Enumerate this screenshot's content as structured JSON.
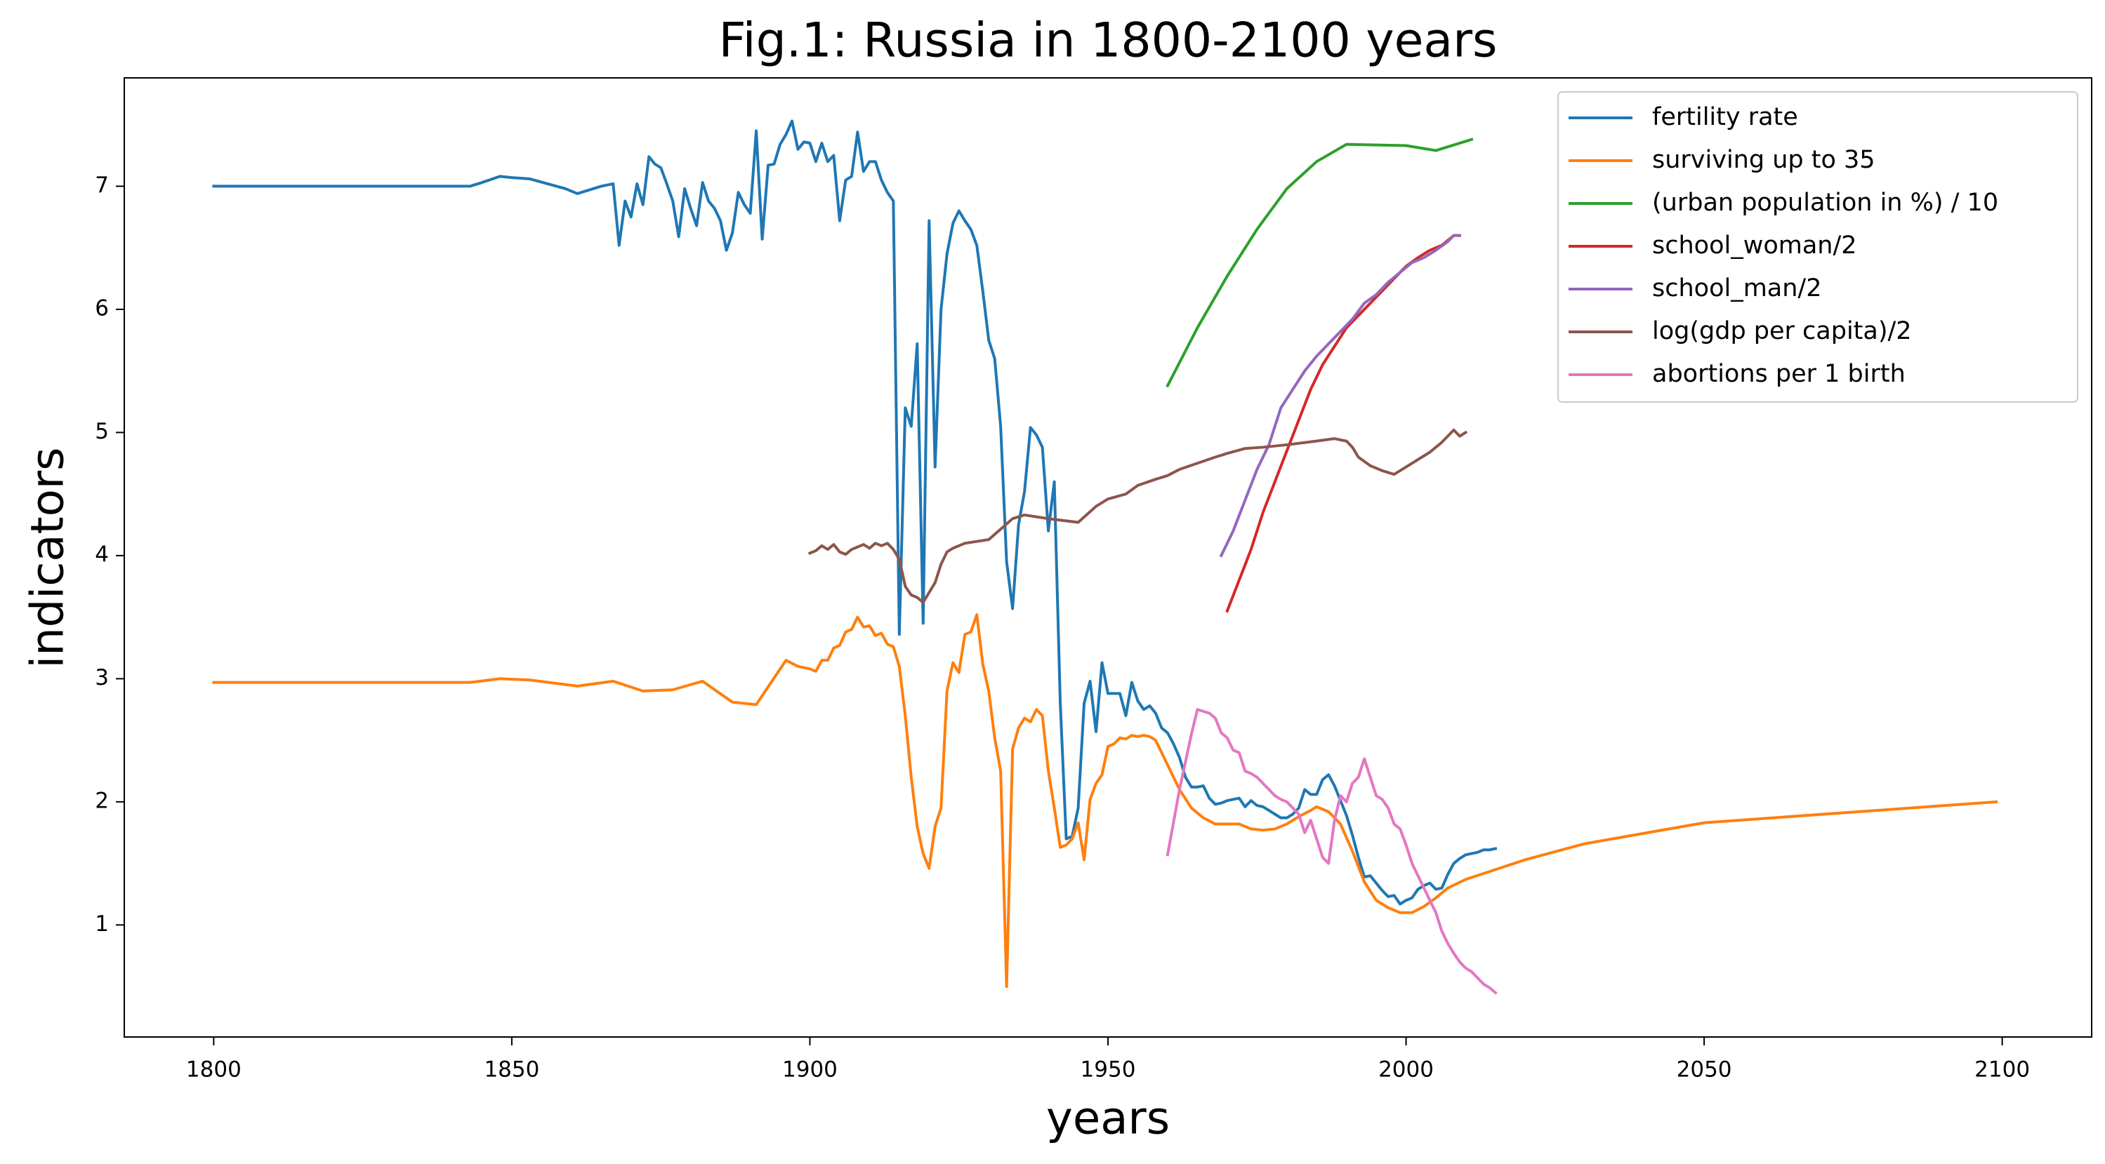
{
  "chart_data": {
    "type": "line",
    "title": "Fig.1: Russia in 1800-2100 years",
    "x_label": "years",
    "y_label": "indicators",
    "xlim": [
      1785,
      2115
    ],
    "ylim": [
      0.09,
      7.88
    ],
    "xticks": [
      1800,
      1850,
      1900,
      1950,
      2000,
      2050,
      2100
    ],
    "yticks": [
      1,
      2,
      3,
      4,
      5,
      6,
      7
    ],
    "legend": "upper right",
    "series": [
      {
        "name": "fertility rate",
        "color": "#1f77b4",
        "x": [
          1800,
          1843,
          1845,
          1848,
          1850,
          1853,
          1856,
          1859,
          1861,
          1863,
          1865,
          1867,
          1868,
          1869,
          1870,
          1871,
          1872,
          1873,
          1874,
          1875,
          1876,
          1877,
          1878,
          1879,
          1880,
          1881,
          1882,
          1883,
          1884,
          1885,
          1886,
          1887,
          1888,
          1889,
          1890,
          1891,
          1892,
          1893,
          1894,
          1895,
          1896,
          1897,
          1898,
          1899,
          1900,
          1901,
          1902,
          1903,
          1904,
          1905,
          1906,
          1907,
          1908,
          1909,
          1910,
          1911,
          1912,
          1913,
          1914,
          1915,
          1916,
          1917,
          1918,
          1919,
          1920,
          1921,
          1922,
          1923,
          1924,
          1925,
          1926,
          1927,
          1928,
          1929,
          1930,
          1931,
          1932,
          1933,
          1934,
          1935,
          1936,
          1937,
          1938,
          1939,
          1940,
          1941,
          1942,
          1943,
          1944,
          1945,
          1946,
          1947,
          1948,
          1949,
          1950,
          1951,
          1952,
          1953,
          1954,
          1955,
          1956,
          1957,
          1958,
          1959,
          1960,
          1961,
          1962,
          1963,
          1964,
          1965,
          1966,
          1967,
          1968,
          1969,
          1970,
          1971,
          1972,
          1973,
          1974,
          1975,
          1976,
          1977,
          1978,
          1979,
          1980,
          1981,
          1982,
          1983,
          1984,
          1985,
          1986,
          1987,
          1988,
          1989,
          1990,
          1991,
          1992,
          1993,
          1994,
          1995,
          1996,
          1997,
          1998,
          1999,
          2000,
          2001,
          2002,
          2003,
          2004,
          2005,
          2006,
          2007,
          2008,
          2009,
          2010,
          2011,
          2012,
          2013,
          2014,
          2015
        ],
        "values": [
          7.0,
          7.0,
          7.03,
          7.08,
          7.07,
          7.06,
          7.02,
          6.98,
          6.94,
          6.97,
          7.0,
          7.02,
          6.52,
          6.88,
          6.75,
          7.02,
          6.85,
          7.24,
          7.18,
          7.15,
          7.02,
          6.88,
          6.59,
          6.98,
          6.82,
          6.68,
          7.03,
          6.88,
          6.82,
          6.72,
          6.48,
          6.62,
          6.95,
          6.85,
          6.78,
          7.45,
          6.57,
          7.17,
          7.18,
          7.34,
          7.42,
          7.53,
          7.3,
          7.36,
          7.35,
          7.2,
          7.35,
          7.2,
          7.25,
          6.72,
          7.05,
          7.08,
          7.44,
          7.12,
          7.2,
          7.2,
          7.05,
          6.95,
          6.88,
          3.36,
          5.2,
          5.05,
          5.72,
          3.45,
          6.72,
          4.72,
          6.0,
          6.45,
          6.7,
          6.8,
          6.72,
          6.65,
          6.52,
          6.15,
          5.75,
          5.6,
          5.05,
          3.95,
          3.57,
          4.25,
          4.52,
          5.04,
          4.98,
          4.88,
          4.2,
          4.6,
          2.8,
          1.7,
          1.72,
          1.95,
          2.8,
          2.98,
          2.57,
          3.13,
          2.88,
          2.88,
          2.88,
          2.7,
          2.97,
          2.82,
          2.75,
          2.78,
          2.72,
          2.6,
          2.56,
          2.47,
          2.36,
          2.2,
          2.12,
          2.12,
          2.13,
          2.03,
          1.98,
          1.99,
          2.01,
          2.02,
          2.03,
          1.96,
          2.01,
          1.97,
          1.96,
          1.93,
          1.9,
          1.87,
          1.87,
          1.9,
          1.95,
          2.1,
          2.06,
          2.06,
          2.18,
          2.22,
          2.13,
          2.01,
          1.89,
          1.73,
          1.55,
          1.39,
          1.4,
          1.34,
          1.28,
          1.23,
          1.24,
          1.17,
          1.2,
          1.22,
          1.29,
          1.32,
          1.34,
          1.29,
          1.3,
          1.41,
          1.5,
          1.54,
          1.57,
          1.58,
          1.59,
          1.61,
          1.61,
          1.62
        ]
      },
      {
        "name": "surviving up to 35",
        "color": "#ff7f0e",
        "x": [
          1800,
          1843,
          1848,
          1853,
          1861,
          1867,
          1872,
          1877,
          1882,
          1887,
          1891,
          1896,
          1898,
          1900,
          1901,
          1902,
          1903,
          1904,
          1905,
          1906,
          1907,
          1908,
          1909,
          1910,
          1911,
          1912,
          1913,
          1914,
          1915,
          1916,
          1917,
          1918,
          1919,
          1920,
          1921,
          1922,
          1923,
          1924,
          1925,
          1926,
          1927,
          1928,
          1929,
          1930,
          1931,
          1932,
          1933,
          1934,
          1935,
          1936,
          1937,
          1938,
          1939,
          1940,
          1941,
          1942,
          1943,
          1944,
          1945,
          1946,
          1947,
          1948,
          1949,
          1950,
          1951,
          1952,
          1953,
          1954,
          1955,
          1956,
          1957,
          1958,
          1960,
          1962,
          1964,
          1966,
          1968,
          1970,
          1972,
          1974,
          1976,
          1978,
          1980,
          1982,
          1984,
          1985,
          1987,
          1989,
          1991,
          1993,
          1995,
          1997,
          1999,
          2001,
          2003,
          2005,
          2007,
          2010,
          2015,
          2020,
          2030,
          2050,
          2099
        ],
        "values": [
          2.97,
          2.97,
          3.0,
          2.99,
          2.94,
          2.98,
          2.9,
          2.91,
          2.98,
          2.81,
          2.79,
          3.15,
          3.1,
          3.08,
          3.06,
          3.15,
          3.15,
          3.25,
          3.27,
          3.38,
          3.4,
          3.5,
          3.42,
          3.43,
          3.35,
          3.37,
          3.28,
          3.26,
          3.1,
          2.7,
          2.2,
          1.8,
          1.58,
          1.46,
          1.8,
          1.95,
          2.9,
          3.13,
          3.05,
          3.36,
          3.38,
          3.52,
          3.12,
          2.9,
          2.52,
          2.25,
          0.5,
          2.43,
          2.6,
          2.68,
          2.65,
          2.75,
          2.7,
          2.25,
          1.95,
          1.63,
          1.65,
          1.7,
          1.83,
          1.53,
          2.02,
          2.15,
          2.22,
          2.45,
          2.47,
          2.52,
          2.51,
          2.54,
          2.53,
          2.54,
          2.53,
          2.5,
          2.3,
          2.1,
          1.95,
          1.87,
          1.82,
          1.82,
          1.82,
          1.78,
          1.77,
          1.78,
          1.82,
          1.88,
          1.93,
          1.96,
          1.92,
          1.82,
          1.6,
          1.35,
          1.2,
          1.14,
          1.1,
          1.1,
          1.15,
          1.22,
          1.3,
          1.37,
          1.45,
          1.53,
          1.66,
          1.83,
          2.0
        ]
      },
      {
        "name": "(urban population in %) / 10",
        "color": "#2ca02c",
        "x": [
          1960,
          1965,
          1970,
          1975,
          1980,
          1985,
          1990,
          2000,
          2005,
          2011
        ],
        "values": [
          5.38,
          5.85,
          6.27,
          6.65,
          6.98,
          7.2,
          7.34,
          7.33,
          7.29,
          7.38
        ]
      },
      {
        "name": "school_woman/2",
        "color": "#d62728",
        "x": [
          1970,
          1972,
          1974,
          1976,
          1978,
          1980,
          1982,
          1984,
          1986,
          1988,
          1990,
          1992,
          1994,
          1996,
          1998,
          2000,
          2002,
          2004,
          2006,
          2008,
          2009
        ],
        "values": [
          3.55,
          3.8,
          4.05,
          4.35,
          4.6,
          4.85,
          5.1,
          5.35,
          5.55,
          5.7,
          5.85,
          5.95,
          6.05,
          6.15,
          6.25,
          6.35,
          6.42,
          6.48,
          6.52,
          6.6,
          6.6
        ]
      },
      {
        "name": "school_man/2",
        "color": "#9467bd",
        "x": [
          1969,
          1971,
          1973,
          1975,
          1977,
          1979,
          1981,
          1983,
          1985,
          1987,
          1989,
          1991,
          1993,
          1995,
          1997,
          1999,
          2001,
          2003,
          2005,
          2007,
          2008,
          2009
        ],
        "values": [
          4.0,
          4.2,
          4.45,
          4.7,
          4.9,
          5.2,
          5.35,
          5.5,
          5.62,
          5.72,
          5.82,
          5.92,
          6.05,
          6.12,
          6.22,
          6.3,
          6.38,
          6.42,
          6.48,
          6.55,
          6.6,
          6.6
        ]
      },
      {
        "name": "log(gdp per capita)/2",
        "color": "#8c564b",
        "x": [
          1900,
          1901,
          1902,
          1903,
          1904,
          1905,
          1906,
          1907,
          1908,
          1909,
          1910,
          1911,
          1912,
          1913,
          1914,
          1915,
          1916,
          1917,
          1918,
          1919,
          1920,
          1921,
          1922,
          1923,
          1924,
          1926,
          1930,
          1934,
          1936,
          1940,
          1945,
          1948,
          1950,
          1953,
          1955,
          1958,
          1960,
          1962,
          1965,
          1968,
          1970,
          1973,
          1976,
          1980,
          1985,
          1988,
          1990,
          1991,
          1992,
          1994,
          1996,
          1998,
          2000,
          2002,
          2004,
          2006,
          2008,
          2009,
          2010
        ],
        "values": [
          4.02,
          4.04,
          4.08,
          4.05,
          4.09,
          4.03,
          4.01,
          4.05,
          4.07,
          4.09,
          4.06,
          4.1,
          4.08,
          4.1,
          4.05,
          3.97,
          3.75,
          3.68,
          3.66,
          3.62,
          3.7,
          3.78,
          3.93,
          4.03,
          4.06,
          4.1,
          4.13,
          4.3,
          4.33,
          4.3,
          4.27,
          4.4,
          4.46,
          4.5,
          4.57,
          4.62,
          4.65,
          4.7,
          4.75,
          4.8,
          4.83,
          4.87,
          4.88,
          4.9,
          4.93,
          4.95,
          4.93,
          4.88,
          4.8,
          4.73,
          4.69,
          4.66,
          4.72,
          4.78,
          4.84,
          4.92,
          5.02,
          4.97,
          5.0
        ]
      },
      {
        "name": "abortions per 1 birth",
        "color": "#e377c2",
        "x": [
          1960,
          1962,
          1964,
          1965,
          1967,
          1968,
          1969,
          1970,
          1971,
          1972,
          1973,
          1974,
          1975,
          1976,
          1977,
          1978,
          1979,
          1980,
          1982,
          1983,
          1984,
          1985,
          1986,
          1987,
          1988,
          1989,
          1990,
          1991,
          1992,
          1993,
          1994,
          1995,
          1996,
          1997,
          1998,
          1999,
          2000,
          2001,
          2002,
          2003,
          2004,
          2005,
          2006,
          2007,
          2008,
          2009,
          2010,
          2011,
          2012,
          2013,
          2014,
          2015
        ],
        "values": [
          1.57,
          2.1,
          2.55,
          2.75,
          2.72,
          2.68,
          2.56,
          2.52,
          2.42,
          2.4,
          2.25,
          2.23,
          2.2,
          2.15,
          2.1,
          2.05,
          2.02,
          2.0,
          1.9,
          1.75,
          1.85,
          1.7,
          1.55,
          1.5,
          1.85,
          2.05,
          2.0,
          2.15,
          2.2,
          2.35,
          2.2,
          2.05,
          2.02,
          1.95,
          1.82,
          1.78,
          1.65,
          1.5,
          1.4,
          1.3,
          1.2,
          1.1,
          0.95,
          0.85,
          0.77,
          0.7,
          0.65,
          0.62,
          0.57,
          0.52,
          0.49,
          0.45
        ]
      }
    ]
  }
}
